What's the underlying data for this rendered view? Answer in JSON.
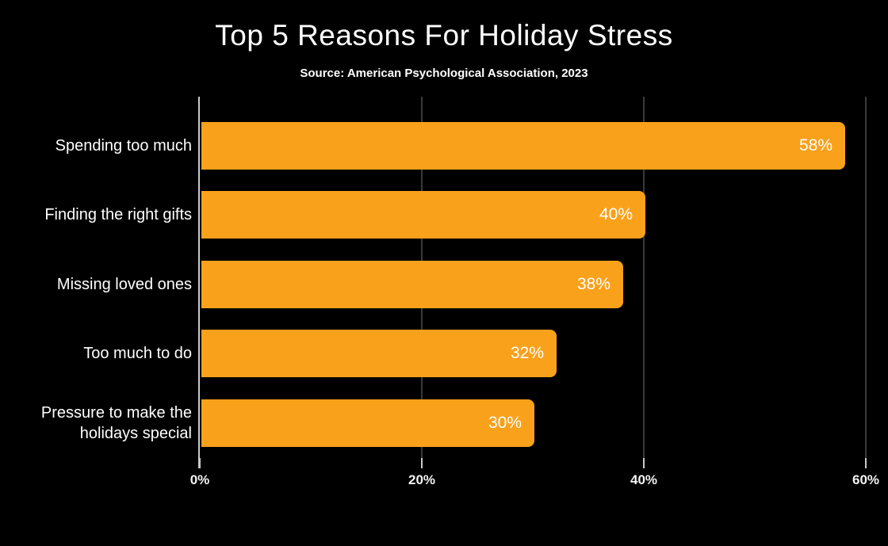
{
  "header": {
    "title": "Top 5 Reasons For Holiday Stress",
    "subtitle": "Source: American Psychological Association, 2023"
  },
  "chart_data": {
    "type": "bar",
    "orientation": "horizontal",
    "title": "Top 5 Reasons For Holiday Stress",
    "subtitle": "Source: American Psychological Association, 2023",
    "categories": [
      "Spending too much",
      "Finding the right gifts",
      "Missing loved ones",
      "Too much to do",
      "Pressure to make the holidays special"
    ],
    "values": [
      58,
      40,
      38,
      32,
      30
    ],
    "value_labels": [
      "58%",
      "40%",
      "38%",
      "32%",
      "30%"
    ],
    "xlabel": "",
    "ylabel": "",
    "xlim": [
      0,
      60
    ],
    "x_tick_values": [
      0,
      20,
      40,
      60
    ],
    "x_tick_labels": [
      "0%",
      "20%",
      "40%",
      "60%"
    ],
    "grid": "vertical-gridlines-behind-bars",
    "legend": "none",
    "colors": {
      "background": "#000000",
      "bar": "#f9a11b",
      "value_label": "#ffffff",
      "category_label": "#ffffff",
      "gridline": "#3a3a3a",
      "axis": "#c9c9c9",
      "tick_label": "#f2f2f2",
      "title": "#ffffff"
    }
  }
}
